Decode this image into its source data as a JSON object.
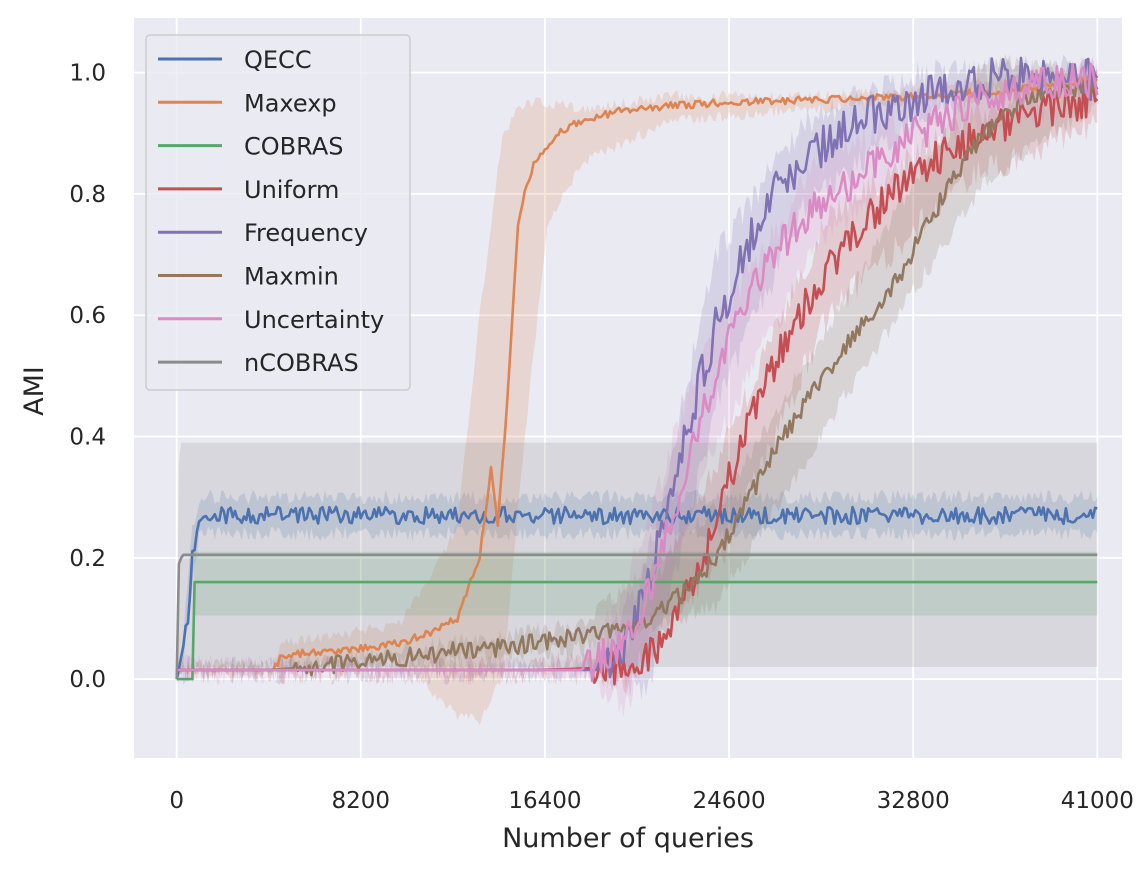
{
  "chart_data": {
    "type": "line",
    "xlabel": "Number of queries",
    "ylabel": "AMI",
    "xlim": [
      -1900,
      42100
    ],
    "ylim": [
      -0.13,
      1.09
    ],
    "xticks": [
      0,
      8200,
      16400,
      24600,
      32800,
      41000
    ],
    "yticks": [
      0.0,
      0.2,
      0.4,
      0.6,
      0.8,
      1.0
    ],
    "xtick_labels": [
      "0",
      "8200",
      "16400",
      "24600",
      "32800",
      "41000"
    ],
    "ytick_labels": [
      "0.0",
      "0.2",
      "0.4",
      "0.6",
      "0.8",
      "1.0"
    ],
    "grid": true,
    "background": "#eaeaf2",
    "legend_position": "top-left",
    "series": [
      {
        "name": "QECC",
        "color": "#4c72b0",
        "x": [
          0,
          300,
          500,
          700,
          1000,
          41000
        ],
        "y": [
          0.0,
          0.05,
          0.1,
          0.2,
          0.27,
          0.27
        ],
        "noise": 0.014,
        "band": 0.025,
        "band_x": [
          0,
          300,
          700,
          1000,
          41000
        ],
        "band_low": [
          0.0,
          0.03,
          0.15,
          0.24,
          0.24
        ],
        "band_high": [
          0.0,
          0.07,
          0.25,
          0.3,
          0.3
        ]
      },
      {
        "name": "Maxexp",
        "color": "#dd8452",
        "x": [
          0,
          4300,
          4700,
          8000,
          10000,
          11500,
          12500,
          13500,
          14000,
          14300,
          14800,
          15200,
          15500,
          15900,
          16500,
          17000,
          18000,
          20000,
          24000,
          28000,
          32800,
          37000,
          41000
        ],
        "y": [
          0.015,
          0.015,
          0.04,
          0.05,
          0.06,
          0.08,
          0.1,
          0.2,
          0.35,
          0.25,
          0.5,
          0.75,
          0.8,
          0.85,
          0.88,
          0.9,
          0.92,
          0.94,
          0.95,
          0.955,
          0.96,
          0.97,
          0.99
        ],
        "noise": 0.006,
        "band": 0.02,
        "band_x": [
          0,
          4300,
          4700,
          10000,
          12500,
          13500,
          14500,
          15500,
          16500,
          18000,
          22000,
          28000,
          32800,
          37000,
          41000
        ],
        "band_low": [
          0.015,
          0.015,
          0.02,
          0.03,
          -0.06,
          -0.07,
          0.0,
          0.4,
          0.75,
          0.85,
          0.92,
          0.94,
          0.95,
          0.96,
          0.97
        ],
        "band_high": [
          0.015,
          0.015,
          0.06,
          0.09,
          0.25,
          0.6,
          0.9,
          0.95,
          0.95,
          0.94,
          0.96,
          0.96,
          0.97,
          0.99,
          1.0
        ]
      },
      {
        "name": "COBRAS",
        "color": "#55a868",
        "x": [
          0,
          700,
          800,
          41000
        ],
        "y": [
          0.0,
          0.0,
          0.16,
          0.16
        ],
        "noise": 0,
        "band": 0,
        "band_x": [
          0,
          700,
          800,
          41000
        ],
        "band_low": [
          0.0,
          0.0,
          0.105,
          0.105
        ],
        "band_high": [
          0.0,
          0.0,
          0.21,
          0.21
        ]
      },
      {
        "name": "Uniform",
        "color": "#c44e52",
        "x": [
          0,
          16000,
          20000,
          21500,
          22500,
          23500,
          24300,
          25500,
          27000,
          29000,
          31000,
          33000,
          35000,
          37000,
          39000,
          41000
        ],
        "y": [
          0.015,
          0.015,
          0.02,
          0.05,
          0.12,
          0.2,
          0.3,
          0.42,
          0.55,
          0.68,
          0.77,
          0.84,
          0.88,
          0.92,
          0.94,
          0.96
        ],
        "noise": 0.03,
        "band": 0.05,
        "band_x": [
          0,
          16000,
          20000,
          24300,
          29000,
          35000,
          41000
        ],
        "band_low": [
          0.015,
          0.015,
          0.0,
          0.2,
          0.6,
          0.82,
          0.92
        ],
        "band_high": [
          0.015,
          0.015,
          0.06,
          0.38,
          0.76,
          0.92,
          1.0
        ]
      },
      {
        "name": "Frequency",
        "color": "#8172b3",
        "x": [
          0,
          18700,
          20000,
          21000,
          22000,
          23000,
          24000,
          25000,
          26000,
          27000,
          28000,
          29500,
          31000,
          33000,
          34500,
          36000,
          41000
        ],
        "y": [
          0.015,
          0.015,
          0.06,
          0.15,
          0.3,
          0.45,
          0.58,
          0.68,
          0.76,
          0.82,
          0.86,
          0.9,
          0.93,
          0.96,
          0.98,
          0.99,
          0.99
        ],
        "noise": 0.035,
        "band": 0.05,
        "band_x": [
          0,
          18700,
          21000,
          24000,
          28000,
          33000,
          36000,
          41000
        ],
        "band_low": [
          0.015,
          0.015,
          -0.02,
          0.45,
          0.78,
          0.92,
          0.97,
          0.97
        ],
        "band_high": [
          0.015,
          0.015,
          0.2,
          0.7,
          0.92,
          1.0,
          1.0,
          1.01
        ]
      },
      {
        "name": "Maxmin",
        "color": "#937860",
        "x": [
          0,
          4000,
          6000,
          9000,
          12000,
          14000,
          16000,
          18000,
          19500,
          21000,
          22500,
          24000,
          25500,
          27000,
          28500,
          30000,
          31500,
          33000,
          34500,
          36000,
          37500,
          39000,
          41000
        ],
        "y": [
          0.015,
          0.015,
          0.02,
          0.03,
          0.045,
          0.05,
          0.06,
          0.07,
          0.08,
          0.1,
          0.14,
          0.2,
          0.3,
          0.4,
          0.48,
          0.56,
          0.62,
          0.72,
          0.82,
          0.9,
          0.95,
          0.97,
          0.98
        ],
        "noise": 0.015,
        "band": 0.03,
        "band_x": [
          0,
          4000,
          18000,
          24000,
          30000,
          36000,
          41000
        ],
        "band_low": [
          0.015,
          0.015,
          0.05,
          0.12,
          0.48,
          0.82,
          0.95
        ],
        "band_high": [
          0.015,
          0.015,
          0.09,
          0.28,
          0.64,
          1.02,
          1.0
        ]
      },
      {
        "name": "Uncertainty",
        "color": "#da8bc3",
        "x": [
          0,
          18000,
          19500,
          20500,
          21500,
          22500,
          23500,
          24500,
          25500,
          27000,
          28500,
          30000,
          31500,
          33000,
          34500,
          36000,
          38000,
          41000
        ],
        "y": [
          0.015,
          0.015,
          0.05,
          0.1,
          0.2,
          0.32,
          0.45,
          0.55,
          0.63,
          0.72,
          0.78,
          0.82,
          0.86,
          0.9,
          0.93,
          0.96,
          0.98,
          0.99
        ],
        "noise": 0.03,
        "band": 0.05,
        "band_x": [
          0,
          18000,
          20000,
          23500,
          28500,
          34500,
          41000
        ],
        "band_low": [
          0.015,
          0.015,
          -0.05,
          0.35,
          0.72,
          0.9,
          0.96
        ],
        "band_high": [
          0.015,
          0.015,
          0.15,
          0.55,
          0.85,
          0.97,
          1.01
        ]
      },
      {
        "name": "nCOBRAS",
        "color": "#8c8c8c",
        "x": [
          0,
          100,
          200,
          300,
          41000
        ],
        "y": [
          0.0,
          0.19,
          0.2,
          0.205,
          0.205
        ],
        "noise": 0,
        "band": 0,
        "band_x": [
          0,
          100,
          200,
          300,
          41000
        ],
        "band_low": [
          0.0,
          0.02,
          0.02,
          0.02,
          0.02
        ],
        "band_high": [
          0.0,
          0.36,
          0.39,
          0.39,
          0.39
        ]
      }
    ]
  }
}
